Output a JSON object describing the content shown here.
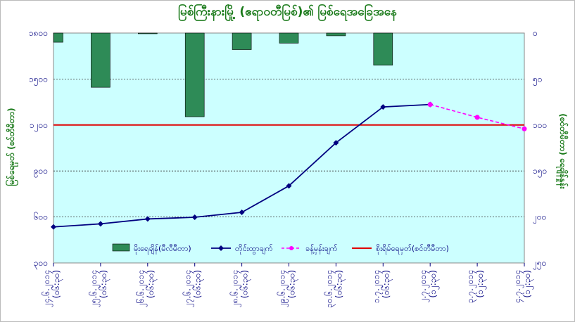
{
  "chart_data": {
    "type": "bar",
    "title": "မြစ်ကြီးနားမြို့ (ဧရာဝတီမြစ်)၏ မြစ်ရေအခြေအနေ",
    "ylabel": "မြစ်ရေမှတ် (စင်တီမီတာ)",
    "ylabel_right": "(စင်တီမီတာ) ရေချိန်နှုန်း",
    "ylim": [
      300,
      1800
    ],
    "y_ticks": [
      "၃၀၀",
      "၆၀၀",
      "၉၀၀",
      "၁၂၀၀",
      "၁၅၀၀",
      "၁၈၀၀"
    ],
    "y2lim": [
      0,
      250
    ],
    "y2_ticks": [
      "၀",
      "၅၀",
      "၁၀၀",
      "၁၅၀",
      "၂၀၀",
      "၂၅၀"
    ],
    "y2_reversed": true,
    "categories": [
      [
        "၂၄.၆.၂၀၁၄",
        "(၀၆:၃၀)"
      ],
      [
        "၂၅.၆.၂၀၁၄",
        "(၀၆:၃၀)"
      ],
      [
        "၂၆.၆.၂၀၁၄",
        "(၀၆:၃၀)"
      ],
      [
        "၂၇.၆.၂၀၁၄",
        "(၀၆:၃၀)"
      ],
      [
        "၂၈.၆.၂၀၁၄",
        "(၀၆:၃၀)"
      ],
      [
        "၂၉.၆.၂၀၁၄",
        "(၀၆:၃၀)"
      ],
      [
        "၃၀.၆.၂၀၁၄",
        "(၀၆:၃၀)"
      ],
      [
        "၁.၇.၂၀၁၄",
        "(၀၆:၃၀)"
      ],
      [
        "၂.၇.၂၀၁၄",
        "(၁၂:၃၀)"
      ],
      [
        "၃.၇.၂၀၁၄",
        "(၁၂:၃၀)"
      ],
      [
        "၄.၇.၂၀၁၄",
        "(၁၂:၃၀)"
      ]
    ],
    "series": [
      {
        "name": "မိုးရေချိန်(မီလီမီတာ)",
        "kind": "bar",
        "axis": "right",
        "color": "#2e8b57",
        "values": [
          10,
          59,
          0,
          91,
          18,
          11,
          3,
          35,
          null,
          null,
          null
        ]
      },
      {
        "name": "တိုင်းထွာချက်",
        "kind": "line",
        "axis": "left",
        "color": "#000080",
        "values": [
          535,
          555,
          587,
          598,
          630,
          803,
          1084,
          1318,
          1334,
          null,
          null
        ]
      },
      {
        "name": "ခန့်မှန်းချက်",
        "kind": "line-dashed",
        "axis": "left",
        "color": "#ff00ff",
        "values": [
          null,
          null,
          null,
          null,
          null,
          null,
          null,
          null,
          1334,
          1250,
          1175
        ]
      },
      {
        "name": "စိုးရိမ်ရေမှတ်(စင်တီမီတာ)",
        "kind": "hline",
        "axis": "left",
        "color": "#e00000",
        "value": 1200
      }
    ],
    "grid": true,
    "legend_position": "bottom-inside"
  }
}
